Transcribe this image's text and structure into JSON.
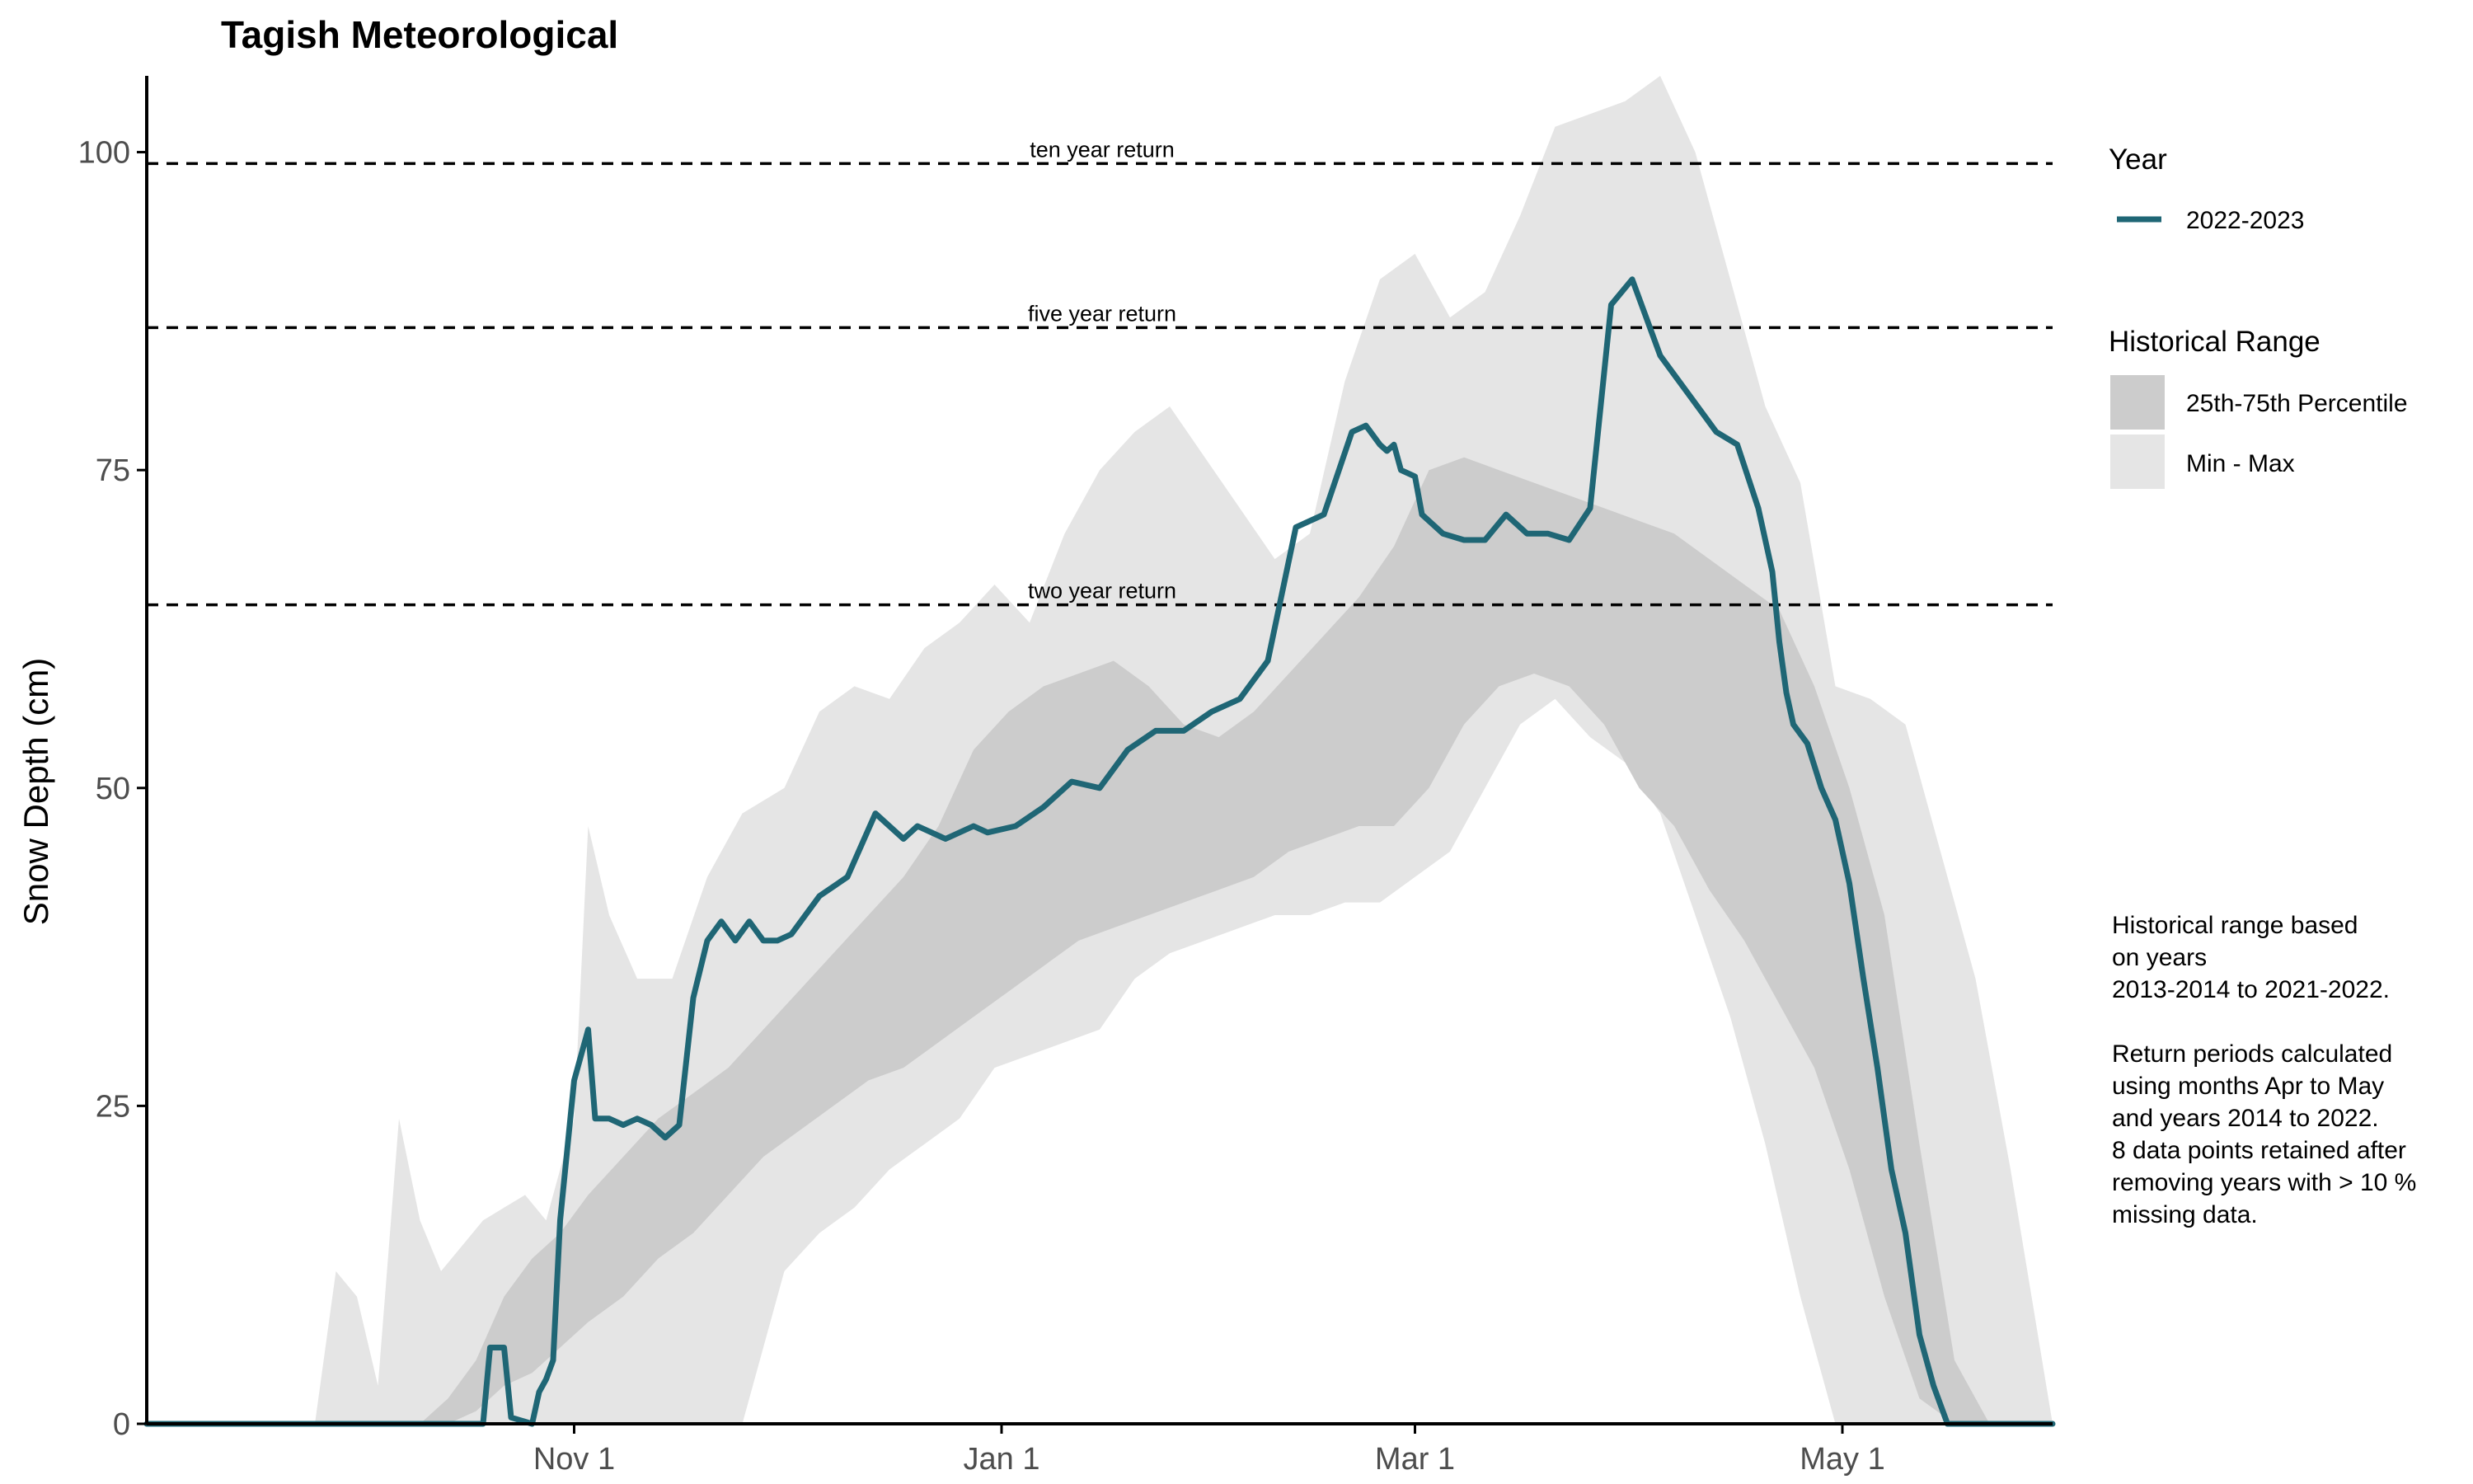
{
  "chart_data": {
    "type": "area",
    "title": "Tagish Meteorological",
    "xlabel": "",
    "ylabel": "Snow Depth (cm)",
    "x_unit": "date",
    "x_range": [
      "2022-09-01",
      "2023-05-31"
    ],
    "ylim": [
      0,
      106
    ],
    "x_ticks": [
      {
        "label": "Nov 1",
        "date": "2022-11-01"
      },
      {
        "label": "Jan 1",
        "date": "2023-01-01"
      },
      {
        "label": "Mar 1",
        "date": "2023-03-01"
      },
      {
        "label": "May 1",
        "date": "2023-05-01"
      }
    ],
    "y_ticks": [
      0,
      25,
      50,
      75,
      100
    ],
    "grid": false,
    "return_periods": [
      {
        "label": "ten year return",
        "value": 99.1
      },
      {
        "label": "five year return",
        "value": 86.2
      },
      {
        "label": "two year return",
        "value": 64.4
      }
    ],
    "legend": {
      "position": "right",
      "year_title": "Year",
      "range_title": "Historical Range",
      "entries": [
        {
          "label": "2022-2023",
          "kind": "line",
          "color": "#1f6675"
        },
        {
          "label": "25th-75th Percentile",
          "kind": "band",
          "color": "#cccccc"
        },
        {
          "label": "Min - Max",
          "kind": "band",
          "color": "#e5e5e5"
        }
      ]
    },
    "note": [
      "Historical range based",
      "on years",
      "2013-2014 to 2021-2022.",
      "",
      "Return periods calculated",
      "using months Apr to May",
      "and years 2014 to 2022.",
      "8 data points retained after",
      "removing years with > 10 %",
      "missing data."
    ],
    "series": [
      {
        "name": "2022-2023",
        "color": "#1f6675",
        "x": [
          "2022-09-01",
          "2022-10-19",
          "2022-10-20",
          "2022-10-22",
          "2022-10-23",
          "2022-10-26",
          "2022-10-27",
          "2022-10-28",
          "2022-10-29",
          "2022-10-30",
          "2022-11-01",
          "2022-11-02",
          "2022-11-03",
          "2022-11-04",
          "2022-11-06",
          "2022-11-08",
          "2022-11-10",
          "2022-11-12",
          "2022-11-14",
          "2022-11-16",
          "2022-11-18",
          "2022-11-20",
          "2022-11-22",
          "2022-11-24",
          "2022-11-26",
          "2022-11-28",
          "2022-11-30",
          "2022-12-02",
          "2022-12-06",
          "2022-12-10",
          "2022-12-14",
          "2022-12-18",
          "2022-12-20",
          "2022-12-24",
          "2022-12-28",
          "2022-12-30",
          "2023-01-03",
          "2023-01-07",
          "2023-01-11",
          "2023-01-15",
          "2023-01-19",
          "2023-01-23",
          "2023-01-27",
          "2023-01-31",
          "2023-02-04",
          "2023-02-08",
          "2023-02-12",
          "2023-02-16",
          "2023-02-20",
          "2023-02-22",
          "2023-02-24",
          "2023-02-25",
          "2023-02-26",
          "2023-02-27",
          "2023-03-01",
          "2023-03-02",
          "2023-03-05",
          "2023-03-08",
          "2023-03-11",
          "2023-03-14",
          "2023-03-17",
          "2023-03-20",
          "2023-03-23",
          "2023-03-26",
          "2023-03-29",
          "2023-04-01",
          "2023-04-05",
          "2023-04-09",
          "2023-04-13",
          "2023-04-16",
          "2023-04-19",
          "2023-04-21",
          "2023-04-22",
          "2023-04-23",
          "2023-04-24",
          "2023-04-26",
          "2023-04-28",
          "2023-04-30",
          "2023-05-02",
          "2023-05-04",
          "2023-05-06",
          "2023-05-08",
          "2023-05-10",
          "2023-05-12",
          "2023-05-14",
          "2023-05-16",
          "2023-05-17",
          "2023-05-18",
          "2023-05-31"
        ],
        "values": [
          0,
          0,
          6,
          6,
          0.5,
          0,
          2.5,
          3.5,
          5,
          16,
          27,
          29,
          31,
          24,
          24,
          23.5,
          24,
          23.5,
          22.5,
          23.5,
          33.5,
          38,
          39.5,
          38,
          39.5,
          38,
          38,
          38.5,
          41.5,
          43,
          48,
          46,
          47,
          46,
          47,
          46.5,
          47,
          48.5,
          50.5,
          50,
          53,
          54.5,
          54.5,
          56,
          57,
          60,
          70.5,
          71.5,
          78,
          78.5,
          77,
          76.5,
          77,
          75,
          74.5,
          71.5,
          70,
          69.5,
          69.5,
          71.5,
          70,
          70,
          69.5,
          72,
          88,
          90,
          84,
          81,
          78,
          77,
          72,
          67,
          61.5,
          57.5,
          55,
          53.5,
          50,
          47.5,
          42.5,
          35,
          28,
          20,
          15,
          7,
          3,
          0,
          0,
          0,
          0
        ]
      },
      {
        "name": "Min - Max",
        "color": "#e5e5e5",
        "x": [
          "2022-09-01",
          "2022-09-25",
          "2022-09-28",
          "2022-10-01",
          "2022-10-04",
          "2022-10-07",
          "2022-10-10",
          "2022-10-13",
          "2022-10-16",
          "2022-10-19",
          "2022-10-22",
          "2022-10-25",
          "2022-10-28",
          "2022-11-01",
          "2022-11-03",
          "2022-11-06",
          "2022-11-10",
          "2022-11-15",
          "2022-11-20",
          "2022-11-25",
          "2022-12-01",
          "2022-12-06",
          "2022-12-11",
          "2022-12-16",
          "2022-12-21",
          "2022-12-26",
          "2022-12-31",
          "2023-01-05",
          "2023-01-10",
          "2023-01-15",
          "2023-01-20",
          "2023-01-25",
          "2023-01-30",
          "2023-02-04",
          "2023-02-09",
          "2023-02-14",
          "2023-02-19",
          "2023-02-24",
          "2023-03-01",
          "2023-03-06",
          "2023-03-11",
          "2023-03-16",
          "2023-03-21",
          "2023-03-26",
          "2023-03-31",
          "2023-04-05",
          "2023-04-10",
          "2023-04-15",
          "2023-04-20",
          "2023-04-25",
          "2023-04-30",
          "2023-05-05",
          "2023-05-10",
          "2023-05-15",
          "2023-05-20",
          "2023-05-25",
          "2023-05-31"
        ],
        "min": [
          0,
          0,
          0,
          0,
          0,
          0,
          0,
          0,
          0,
          0,
          0,
          0,
          0,
          0,
          0,
          0,
          0,
          0,
          0,
          0,
          12,
          15,
          17,
          20,
          22,
          24,
          28,
          29,
          30,
          31,
          35,
          37,
          38,
          39,
          40,
          40,
          41,
          41,
          43,
          45,
          50,
          55,
          57,
          54,
          52,
          48,
          40,
          32,
          22,
          10,
          0,
          0,
          0,
          0,
          0,
          0,
          0
        ],
        "max": [
          0,
          0,
          12,
          10,
          3,
          24,
          16,
          12,
          14,
          16,
          17,
          18,
          16,
          24,
          47,
          40,
          35,
          35,
          43,
          48,
          50,
          56,
          58,
          57,
          61,
          63,
          66,
          63,
          70,
          75,
          78,
          80,
          76,
          72,
          68,
          70,
          82,
          90,
          92,
          87,
          89,
          95,
          102,
          103,
          104,
          106,
          100,
          90,
          80,
          74,
          58,
          57,
          55,
          45,
          35,
          20,
          0
        ]
      },
      {
        "name": "25th-75th Percentile",
        "color": "#cccccc",
        "x": [
          "2022-09-01",
          "2022-10-10",
          "2022-10-14",
          "2022-10-18",
          "2022-10-22",
          "2022-10-26",
          "2022-10-30",
          "2022-11-03",
          "2022-11-08",
          "2022-11-13",
          "2022-11-18",
          "2022-11-23",
          "2022-11-28",
          "2022-12-03",
          "2022-12-08",
          "2022-12-13",
          "2022-12-18",
          "2022-12-23",
          "2022-12-28",
          "2023-01-02",
          "2023-01-07",
          "2023-01-12",
          "2023-01-17",
          "2023-01-22",
          "2023-01-27",
          "2023-02-01",
          "2023-02-06",
          "2023-02-11",
          "2023-02-16",
          "2023-02-21",
          "2023-02-26",
          "2023-03-03",
          "2023-03-08",
          "2023-03-13",
          "2023-03-18",
          "2023-03-23",
          "2023-03-28",
          "2023-04-02",
          "2023-04-07",
          "2023-04-12",
          "2023-04-17",
          "2023-04-22",
          "2023-04-27",
          "2023-05-02",
          "2023-05-07",
          "2023-05-12",
          "2023-05-17",
          "2023-05-22",
          "2023-05-31"
        ],
        "p25": [
          0,
          0,
          0,
          1,
          3,
          4,
          6,
          8,
          10,
          13,
          15,
          18,
          21,
          23,
          25,
          27,
          28,
          30,
          32,
          34,
          36,
          38,
          39,
          40,
          41,
          42,
          43,
          45,
          46,
          47,
          47,
          50,
          55,
          58,
          59,
          58,
          55,
          50,
          47,
          42,
          38,
          33,
          28,
          20,
          10,
          2,
          0,
          0,
          0
        ],
        "p75": [
          0,
          0,
          2,
          5,
          10,
          13,
          15,
          18,
          21,
          24,
          26,
          28,
          31,
          34,
          37,
          40,
          43,
          47,
          53,
          56,
          58,
          59,
          60,
          58,
          55,
          54,
          56,
          59,
          62,
          65,
          69,
          75,
          76,
          75,
          74,
          73,
          72,
          71,
          70,
          68,
          66,
          64,
          58,
          50,
          40,
          22,
          5,
          0,
          0
        ]
      }
    ]
  }
}
